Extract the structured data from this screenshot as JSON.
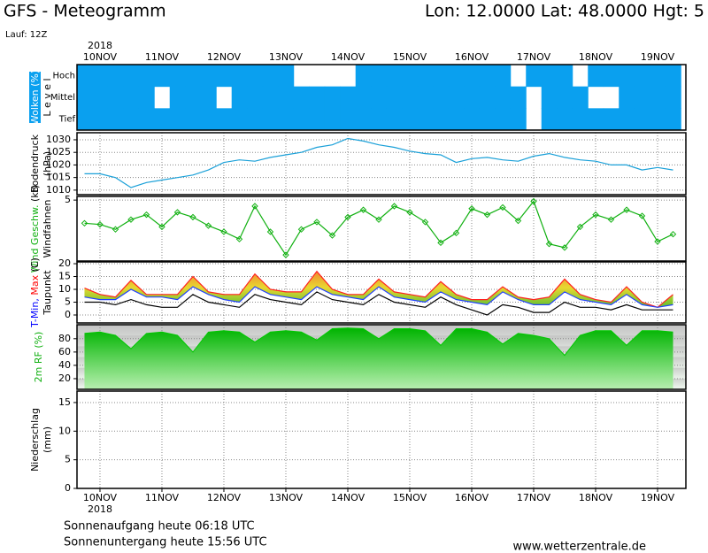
{
  "header": {
    "title": "GFS - Meteogramm",
    "location": "Lon: 12.0000 Lat: 48.0000 Hgt: 5",
    "run": "Lauf: 12Z"
  },
  "footer": {
    "sunrise": "Sonnenaufgang heute 06:18 UTC",
    "sunset": "Sonnenuntergang heute 15:56 UTC",
    "site": "www.wetterzentrale.de"
  },
  "time_axis": {
    "xlim": [
      -0.371,
      9.457
    ],
    "year": "2018",
    "xticks": [
      {
        "value": 0,
        "label": "10NOV"
      },
      {
        "value": 1,
        "label": "11NOV"
      },
      {
        "value": 2,
        "label": "12NOV"
      },
      {
        "value": 3,
        "label": "13NOV"
      },
      {
        "value": 4,
        "label": "14NOV"
      },
      {
        "value": 5,
        "label": "15NOV"
      },
      {
        "value": 6,
        "label": "16NOV"
      },
      {
        "value": 7,
        "label": "17NOV"
      },
      {
        "value": 8,
        "label": "18NOV"
      },
      {
        "value": 9,
        "label": "19NOV"
      }
    ],
    "x": [
      -0.25,
      0,
      0.25,
      0.5,
      0.75,
      1,
      1.25,
      1.5,
      1.75,
      2,
      2.25,
      2.5,
      2.75,
      3,
      3.25,
      3.5,
      3.75,
      4,
      4.25,
      4.5,
      4.75,
      5,
      5.25,
      5.5,
      5.75,
      6,
      6.25,
      6.5,
      6.75,
      7,
      7.25,
      7.5,
      7.75,
      8,
      8.25,
      8.5,
      8.75,
      9,
      9.25
    ]
  },
  "chart_data": [
    {
      "type": "cloud",
      "ylabel": [
        [
          {
            "text": "Wolken (%)",
            "color": "#ffffff",
            "bg": "#0aa0ef"
          }
        ],
        [
          {
            "text": "L e v e l",
            "color": "#000000"
          }
        ]
      ],
      "series": [
        {
          "name": "Hoch",
          "color": "#0aa0ef",
          "values": [
            100,
            100,
            100,
            100,
            100,
            100,
            100,
            100,
            100,
            100,
            100,
            100,
            100,
            100,
            0,
            0,
            0,
            0,
            100,
            100,
            100,
            100,
            100,
            100,
            100,
            100,
            100,
            100,
            0,
            100,
            100,
            100,
            0,
            100,
            100,
            100,
            100,
            100,
            100
          ]
        },
        {
          "name": "Mittel",
          "color": "#0aa0ef",
          "values": [
            100,
            100,
            100,
            100,
            100,
            0,
            100,
            100,
            100,
            0,
            100,
            100,
            100,
            100,
            100,
            100,
            100,
            100,
            100,
            100,
            100,
            100,
            100,
            100,
            100,
            100,
            100,
            100,
            100,
            0,
            100,
            100,
            100,
            0,
            0,
            100,
            100,
            100,
            100
          ]
        },
        {
          "name": "Tief",
          "color": "#0aa0ef",
          "values": [
            100,
            100,
            100,
            100,
            100,
            100,
            100,
            100,
            100,
            100,
            100,
            100,
            100,
            100,
            100,
            100,
            100,
            100,
            100,
            100,
            100,
            100,
            100,
            100,
            100,
            100,
            100,
            100,
            100,
            0,
            100,
            100,
            100,
            100,
            100,
            100,
            100,
            100,
            100
          ]
        }
      ]
    },
    {
      "type": "line",
      "ylabel": [
        [
          {
            "text": "Bodendruck",
            "color": "#000000"
          }
        ],
        [
          {
            "text": "(hPa)",
            "color": "#000000"
          }
        ]
      ],
      "ylim": [
        1008.2,
        1032.8
      ],
      "yticks": [
        1010,
        1015,
        1020,
        1025,
        1030
      ],
      "grid": true,
      "markers": false,
      "series": [
        {
          "name": "Bodendruck",
          "color": "#1aa0d8",
          "values": [
            1016.5,
            1016.5,
            1015,
            1011,
            1013,
            1014,
            1015,
            1016,
            1018,
            1021,
            1022,
            1021.5,
            1023,
            1024,
            1025,
            1027,
            1028,
            1030.5,
            1029.5,
            1028,
            1027,
            1025.5,
            1024.5,
            1024,
            1021,
            1022.5,
            1023,
            1022,
            1021.5,
            1023.5,
            1024.5,
            1023,
            1022,
            1021.5,
            1020,
            1020,
            1018,
            1019,
            1018
          ]
        }
      ]
    },
    {
      "type": "line",
      "ylabel": [
        [
          {
            "text": "Wind Geschw.",
            "color": "#10b010"
          },
          {
            "text": " (kt)",
            "color": "#000000"
          }
        ],
        [
          {
            "text": "Windfahnen",
            "color": "#000000"
          }
        ]
      ],
      "ylim": [
        0,
        5.3
      ],
      "yticks": [
        5
      ],
      "grid": true,
      "markers": true,
      "series": [
        {
          "name": "Wind Geschw.",
          "color": "#10b010",
          "values": [
            3.1,
            3,
            2.6,
            3.4,
            3.8,
            2.8,
            4,
            3.6,
            2.9,
            2.4,
            1.8,
            4.5,
            2.4,
            0.5,
            2.6,
            3.2,
            2.1,
            3.6,
            4.2,
            3.4,
            4.5,
            4,
            3.2,
            1.5,
            2.3,
            4.3,
            3.8,
            4.4,
            3.3,
            4.9,
            1.4,
            1.1,
            2.8,
            3.8,
            3.4,
            4.2,
            3.7,
            1.6,
            2.2
          ]
        }
      ]
    },
    {
      "type": "range",
      "ylabel": [
        [
          {
            "text": "T-Min,",
            "color": "#0000ff"
          },
          {
            "text": " Max",
            "color": "#ff0000"
          },
          {
            "text": " (C)",
            "color": "#000000"
          }
        ],
        [
          {
            "text": "Taupunkt",
            "color": "#000000"
          }
        ]
      ],
      "ylim": [
        -3.1,
        20.7
      ],
      "yticks": [
        0,
        5,
        10,
        15,
        20
      ],
      "grid": true,
      "series": [
        {
          "name": "T-Max",
          "color": "#ff2020",
          "values": [
            10.5,
            8,
            7,
            13.5,
            8,
            8,
            8,
            15,
            9,
            8,
            8,
            16,
            10,
            9,
            9,
            17,
            10,
            8,
            8,
            14,
            9,
            8,
            7,
            13,
            8,
            6,
            6,
            11,
            7,
            6,
            7,
            14,
            8,
            6,
            5,
            11,
            5,
            3,
            8
          ]
        },
        {
          "name": "T-Min",
          "color": "#2040ff",
          "values": [
            7,
            6,
            6,
            10,
            7,
            7,
            6,
            11,
            8,
            6,
            5,
            11,
            8,
            7,
            6,
            11,
            8,
            7,
            6,
            11,
            7,
            6,
            5,
            9,
            6,
            5,
            4,
            9,
            6,
            4,
            4,
            9,
            6,
            5,
            4,
            8,
            4,
            3,
            4
          ]
        },
        {
          "name": "Taupunkt",
          "color": "#000000",
          "values": [
            5,
            5,
            4,
            6,
            4,
            3,
            3,
            8,
            5,
            4,
            3,
            8,
            6,
            5,
            4,
            9,
            6,
            5,
            4,
            8,
            5,
            4,
            3,
            7,
            4,
            2,
            0,
            4,
            3,
            1,
            1,
            5,
            3,
            3,
            2,
            4,
            2,
            2,
            2
          ]
        }
      ]
    },
    {
      "type": "area",
      "ylabel": [
        [
          {
            "text": "2m RF (%)",
            "color": "#10b010"
          }
        ]
      ],
      "ylim": [
        4,
        101
      ],
      "yticks": [
        20,
        40,
        60,
        80
      ],
      "grid": true,
      "series": [
        {
          "name": "2m RF",
          "color": "#00c800",
          "values": [
            88,
            90,
            85,
            65,
            88,
            90,
            85,
            60,
            90,
            92,
            90,
            75,
            90,
            92,
            90,
            78,
            95,
            96,
            95,
            80,
            95,
            95,
            92,
            70,
            95,
            95,
            90,
            72,
            88,
            85,
            80,
            55,
            85,
            92,
            92,
            70,
            92,
            92,
            90
          ]
        }
      ]
    },
    {
      "type": "bar",
      "ylabel": [
        [
          {
            "text": "Niederschlag",
            "color": "#000000"
          }
        ],
        [
          {
            "text": "(mm)",
            "color": "#000000"
          }
        ]
      ],
      "ylim": [
        0,
        17
      ],
      "yticks": [
        0,
        5,
        10,
        15
      ],
      "grid": true,
      "series": []
    }
  ]
}
